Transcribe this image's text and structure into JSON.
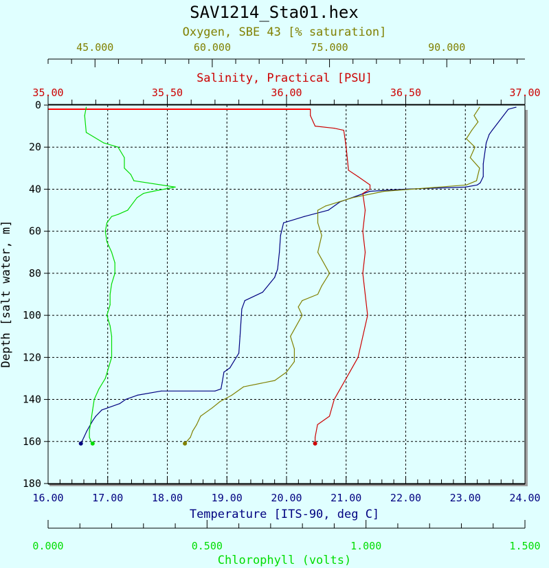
{
  "chart_data": {
    "type": "line",
    "title": "SAV1214_Sta01.hex",
    "colors": {
      "background": "#e0ffff",
      "oxygen": "#808000",
      "salinity": "#cc0000",
      "temperature": "#000080",
      "chlorophyll": "#00dd00",
      "zero_line": "#ff0000"
    },
    "axes": {
      "oxygen": {
        "label": "Oxygen, SBE 43 [% saturation]",
        "range": [
          39.0,
          100.0
        ],
        "ticks": [
          "45.000",
          "60.000",
          "75.000",
          "90.000"
        ]
      },
      "salinity": {
        "label": "Salinity, Practical [PSU]",
        "range": [
          35.0,
          37.0
        ],
        "ticks": [
          "35.00",
          "35.50",
          "36.00",
          "36.50",
          "37.00"
        ]
      },
      "temperature": {
        "label": "Temperature [ITS-90, deg C]",
        "range": [
          16.0,
          24.0
        ],
        "ticks": [
          "16.00",
          "17.00",
          "18.00",
          "19.00",
          "20.00",
          "21.00",
          "22.00",
          "23.00",
          "24.00"
        ]
      },
      "chlorophyll": {
        "label": "Chlorophyll (volts)",
        "range": [
          0.0,
          1.5
        ],
        "ticks": [
          "0.000",
          "0.500",
          "1.000",
          "1.500"
        ]
      },
      "depth": {
        "label": "Depth [salt water, m]",
        "range": [
          0,
          180
        ],
        "ticks": [
          "0",
          "20",
          "40",
          "60",
          "80",
          "100",
          "120",
          "140",
          "160",
          "180"
        ]
      }
    },
    "grid": true,
    "series": [
      {
        "name": "Temperature",
        "axis": "temperature",
        "x": [
          23.85,
          23.72,
          23.45,
          23.4,
          23.35,
          23.3,
          23.3,
          23.25,
          23.2,
          23.0,
          22.0,
          21.4,
          20.9,
          20.7,
          20.3,
          19.95,
          19.9,
          19.88,
          19.85,
          19.8,
          19.6,
          19.3,
          19.25,
          19.22,
          19.2,
          19.05,
          18.95,
          18.92,
          18.9,
          18.8,
          17.9,
          17.5,
          17.3,
          17.2,
          16.9,
          16.8,
          16.75,
          16.65,
          16.6,
          16.55
        ],
        "y": [
          1,
          2,
          12,
          14,
          18,
          28,
          34,
          37,
          38,
          39,
          40,
          41,
          46,
          50,
          53,
          56,
          62,
          70,
          78,
          82,
          89,
          93,
          97,
          110,
          118,
          125,
          127,
          132,
          135,
          136,
          136,
          138,
          140,
          142,
          145,
          148,
          150,
          155,
          158,
          161
        ]
      },
      {
        "name": "Salinity",
        "axis": "salinity",
        "x": [
          36.1,
          36.1,
          36.12,
          36.2,
          36.24,
          36.25,
          36.26,
          36.3,
          36.35,
          36.35,
          36.32,
          36.33,
          36.32,
          36.33,
          36.32,
          36.33,
          36.34,
          36.3,
          36.25,
          36.2,
          36.18,
          36.13,
          36.12,
          36.12
        ],
        "y": [
          2,
          5,
          10,
          11,
          12,
          20,
          31,
          34,
          38,
          40,
          42,
          50,
          60,
          70,
          80,
          90,
          100,
          120,
          130,
          140,
          148,
          152,
          158,
          161
        ]
      },
      {
        "name": "Oxygen",
        "axis": "oxygen",
        "x": [
          94.2,
          93.5,
          94.0,
          93.2,
          92.5,
          93.6,
          93.0,
          94.2,
          93.8,
          92.5,
          82.0,
          78.0,
          74.5,
          73.5,
          73.5,
          74.0,
          73.5,
          75.0,
          74.0,
          73.5,
          71.5,
          71.0,
          71.5,
          70.0,
          70.5,
          70.5,
          69.5,
          68.0,
          64.0,
          62.5,
          61.0,
          60.0,
          58.5,
          58.0,
          57.5,
          57.2,
          56.5
        ],
        "y": [
          1,
          5,
          8,
          12,
          16,
          20,
          25,
          30,
          36,
          38,
          41,
          44,
          48,
          50,
          56,
          62,
          70,
          80,
          86,
          90,
          93,
          96,
          100,
          110,
          116,
          122,
          127,
          131,
          134,
          138,
          141,
          144,
          148,
          152,
          155,
          158,
          161
        ]
      },
      {
        "name": "Chlorophyll",
        "axis": "chlorophyll",
        "x": [
          0.12,
          0.115,
          0.12,
          0.175,
          0.22,
          0.24,
          0.24,
          0.26,
          0.27,
          0.4,
          0.33,
          0.3,
          0.28,
          0.25,
          0.22,
          0.2,
          0.185,
          0.18,
          0.185,
          0.2,
          0.21,
          0.21,
          0.2,
          0.195,
          0.195,
          0.185,
          0.195,
          0.2,
          0.2,
          0.18,
          0.16,
          0.145,
          0.14,
          0.135,
          0.13,
          0.13,
          0.135,
          0.14
        ],
        "y": [
          1,
          5,
          13,
          18,
          20,
          25,
          30,
          33,
          36,
          39,
          41,
          42,
          44,
          50,
          52,
          53,
          56,
          60,
          65,
          70,
          75,
          80,
          85,
          90,
          95,
          100,
          105,
          110,
          120,
          130,
          135,
          140,
          145,
          150,
          155,
          158,
          160,
          161
        ]
      }
    ]
  }
}
